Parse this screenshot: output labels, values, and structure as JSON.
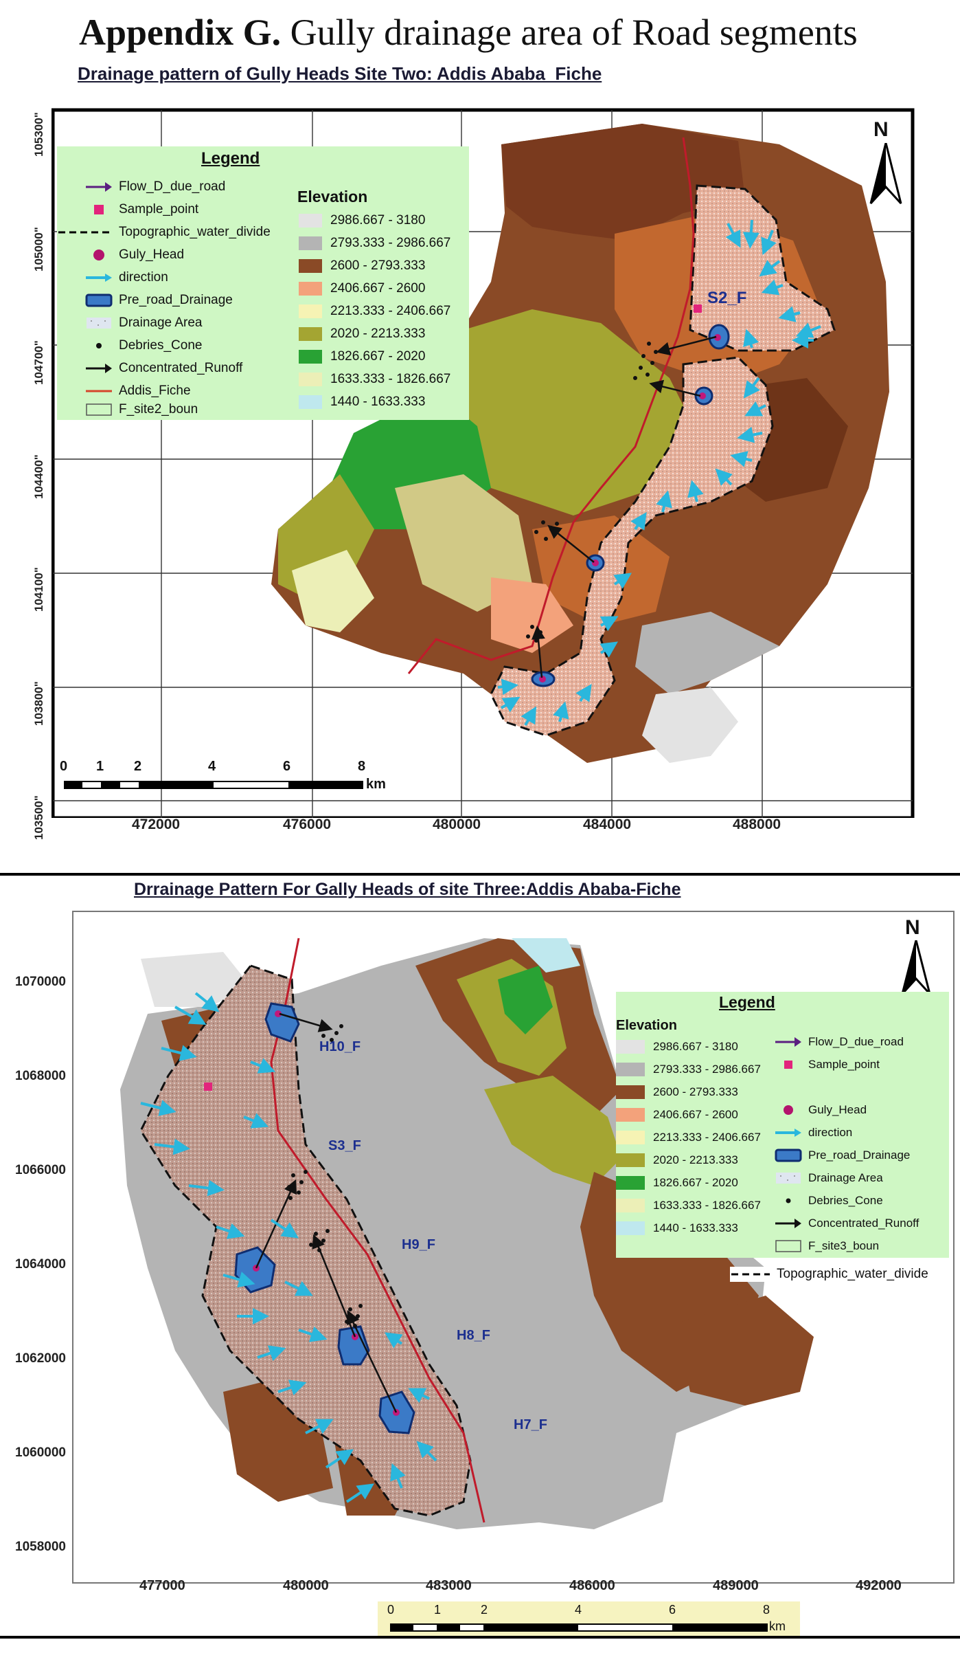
{
  "page": {
    "title_bold": "Appendix G.",
    "title_rest": " Gully drainage area of Road segments"
  },
  "map1": {
    "title": "Drainage pattern of Gully Heads Site Two: Addis Ababa_Fiche",
    "y_ticks": [
      "105300\"",
      "105000\"",
      "104700\"",
      "104400\"",
      "104100\"",
      "103800\"",
      "103500\""
    ],
    "x_ticks": [
      "472000",
      "476000",
      "480000",
      "484000",
      "488000"
    ],
    "north": "N",
    "legend_title": "Legend",
    "legend_items": [
      {
        "icon": "purple-arrow-icon",
        "label": "Flow_D_due_road"
      },
      {
        "icon": "pink-square-icon",
        "label": "Sample_point"
      },
      {
        "icon": "dashed-line-icon",
        "label": "Topographic_water_divide"
      },
      {
        "icon": "magenta-circle-icon",
        "label": "Guly_Head"
      },
      {
        "icon": "cyan-arrow-icon",
        "label": "direction"
      },
      {
        "icon": "blue-polygon-icon",
        "label": "Pre_road_Drainage"
      },
      {
        "icon": "stipple-fill-icon",
        "label": "Drainage Area"
      },
      {
        "icon": "black-dot-icon",
        "label": "Debries_Cone"
      },
      {
        "icon": "black-arrow-icon",
        "label": "Concentrated_Runoff"
      },
      {
        "icon": "red-line-icon",
        "label": "Addis_Fiche"
      },
      {
        "icon": "empty-box-icon",
        "label": "F_site2_boun"
      }
    ],
    "elevation_title": "Elevation",
    "elevation_classes": [
      {
        "label": "2986.667 - 3180",
        "color": "#e3e3e3"
      },
      {
        "label": "2793.333 - 2986.667",
        "color": "#b4b4b4"
      },
      {
        "label": "2600 - 2793.333",
        "color": "#8a4a26"
      },
      {
        "label": "2406.667 - 2600",
        "color": "#f3a27b"
      },
      {
        "label": "2213.333 - 2406.667",
        "color": "#f6f3b4"
      },
      {
        "label": "2020 - 2213.333",
        "color": "#a4a532"
      },
      {
        "label": "1826.667 - 2020",
        "color": "#29a234"
      },
      {
        "label": "1633.333 - 1826.667",
        "color": "#ecefb7"
      },
      {
        "label": "1440 - 1633.333",
        "color": "#bfe8ee"
      }
    ],
    "scale_labels": [
      "0",
      "1",
      "2",
      "4",
      "6",
      "8"
    ],
    "scale_unit": "km",
    "site_label": "S2_F"
  },
  "map2": {
    "title": "Drrainage Pattern For Gally Heads of site Three:Addis Ababa-Fiche",
    "y_ticks": [
      "1070000",
      "1068000",
      "1066000",
      "1064000",
      "1062000",
      "1060000",
      "1058000"
    ],
    "x_ticks": [
      "477000",
      "480000",
      "483000",
      "486000",
      "489000",
      "492000"
    ],
    "north": "N",
    "legend_title": "Legend",
    "elevation_title": "Elevation",
    "elevation_classes": [
      {
        "label": "2986.667 - 3180",
        "color": "#e3e3e3"
      },
      {
        "label": "2793.333 - 2986.667",
        "color": "#b4b4b4"
      },
      {
        "label": "2600 - 2793.333",
        "color": "#8a4a26"
      },
      {
        "label": "2406.667 - 2600",
        "color": "#f3a27b"
      },
      {
        "label": "2213.333 - 2406.667",
        "color": "#f6f3b4"
      },
      {
        "label": "2020 - 2213.333",
        "color": "#a4a532"
      },
      {
        "label": "1826.667 - 2020",
        "color": "#29a234"
      },
      {
        "label": "1633.333 - 1826.667",
        "color": "#ecefb7"
      },
      {
        "label": "1440 - 1633.333",
        "color": "#bfe8ee"
      }
    ],
    "legend_items": [
      {
        "icon": "purple-arrow-icon",
        "label": "Flow_D_due_road"
      },
      {
        "icon": "pink-square-icon",
        "label": "Sample_point"
      },
      {
        "icon": "magenta-circle-icon",
        "label": "Guly_Head"
      },
      {
        "icon": "cyan-arrow-icon",
        "label": "direction"
      },
      {
        "icon": "blue-polygon-icon",
        "label": "Pre_road_Drainage"
      },
      {
        "icon": "stipple-fill-icon",
        "label": "Drainage Area"
      },
      {
        "icon": "black-dot-icon",
        "label": "Debries_Cone"
      },
      {
        "icon": "black-arrow-icon",
        "label": "Concentrated_Runoff"
      },
      {
        "icon": "empty-box-icon",
        "label": "F_site3_boun"
      },
      {
        "icon": "dashed-line-icon",
        "label": "Topographic_water_divide"
      }
    ],
    "scale_labels": [
      "0",
      "1",
      "2",
      "4",
      "6",
      "8"
    ],
    "scale_unit": "km",
    "gully_labels": [
      "H10_F",
      "S3_F",
      "H9_F",
      "H8_F",
      "H7_F"
    ]
  }
}
